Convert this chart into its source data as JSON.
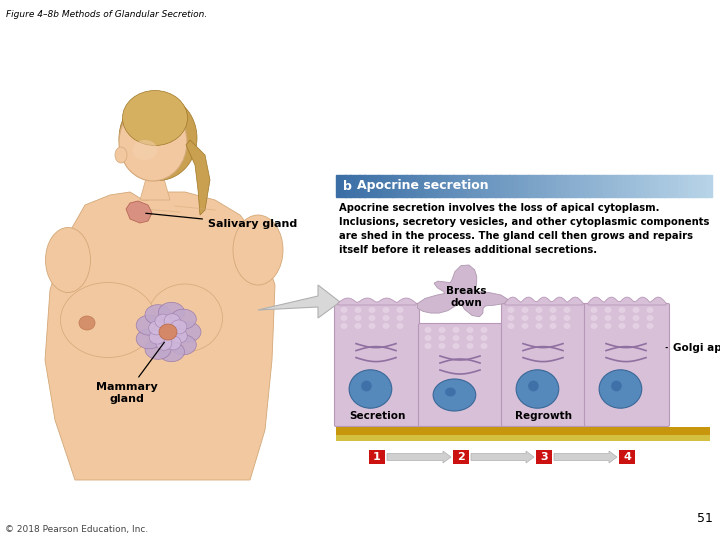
{
  "title": "Figure 4–8b Methods of Glandular Secretion.",
  "title_fontsize": 6.5,
  "title_color": "#000000",
  "background_color": "#ffffff",
  "section_b_label": "b",
  "section_b_title": "Apocrine secretion",
  "section_b_title_color": "#ffffff",
  "header_color_left": "#3a6ea5",
  "header_color_right": "#b8d4e8",
  "body_text_line1": "Apocrine secretion involves the loss of apical cytoplasm.",
  "body_text_line2": "Inclusions, secretory vesicles, and other cytoplasmic components",
  "body_text_line3": "are shed in the process. The gland cell then grows and repairs",
  "body_text_line4": "itself before it releases additional secretions.",
  "body_text_fontsize": 7.2,
  "salivary_label": "Salivary gland",
  "mammary_label": "Mammary\ngland",
  "breaks_down_label": "Breaks\ndown",
  "golgi_label": "Golgi apparatus",
  "secretion_label": "Secretion",
  "regrowth_label": "Regrowth",
  "step_labels": [
    "1",
    "2",
    "3",
    "4"
  ],
  "step_label_bg": "#cc1111",
  "step_label_color": "#ffffff",
  "cell_fill_color": "#d8c0d8",
  "cell_border_color": "#b898b8",
  "cell_top_dots_color": "#e8d0e8",
  "nucleus_color": "#5588bb",
  "golgi_line_color": "#9070a0",
  "base_layer1_color": "#c8960c",
  "base_layer2_color": "#d4c040",
  "step_arrow_color": "#cccccc",
  "big_arrow_fill": "#d8d8d8",
  "big_arrow_edge": "#b0b0b0",
  "page_number": "51",
  "copyright": "© 2018 Pearson Education, Inc.",
  "skin_color": "#f2c8a0",
  "skin_edge": "#d4a878",
  "hair_color": "#c8a050",
  "hair_edge": "#a07828",
  "gland_pink": "#e09080",
  "mammary_lobe_color": "#c0a8cc",
  "mammary_lobe_edge": "#9878a8",
  "mammary_center_color": "#d48868",
  "salivary_color": "#d89080",
  "break_fill": "#d0b8d0",
  "break_edge": "#b098b0"
}
